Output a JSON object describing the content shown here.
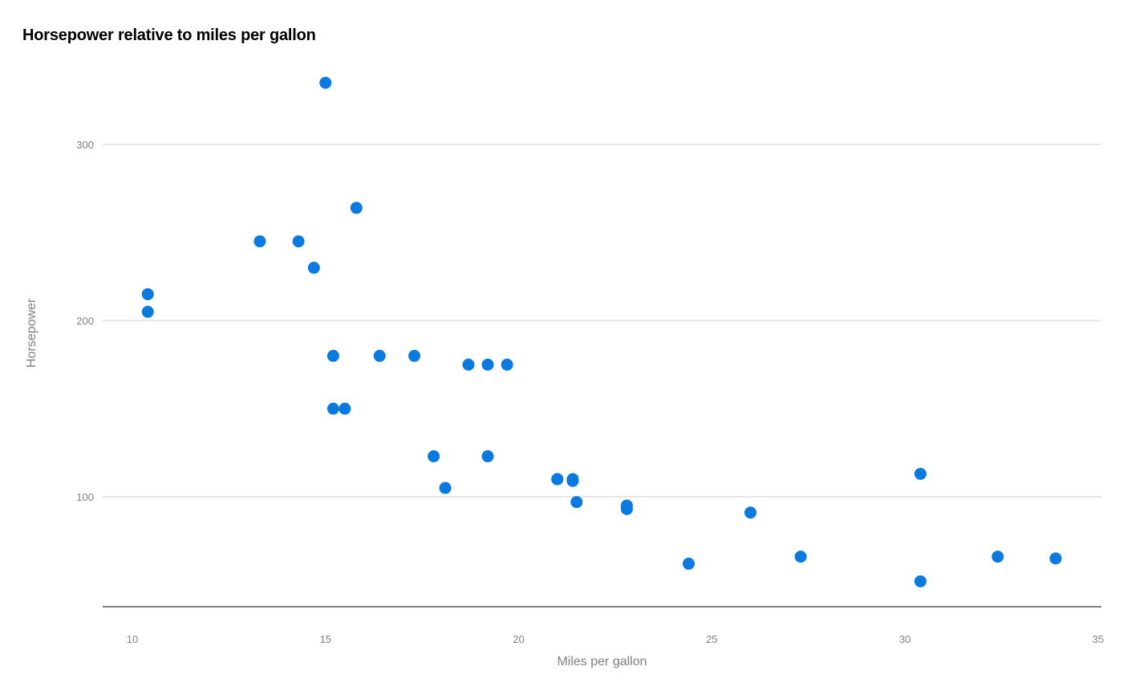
{
  "chart_data": {
    "type": "scatter",
    "title": "Horsepower relative to miles per gallon",
    "xlabel": "Miles per gallon",
    "ylabel": "Horsepower",
    "xlim": [
      10,
      35
    ],
    "ylim": [
      38,
      345
    ],
    "xticks": [
      "10",
      "15",
      "20",
      "25",
      "30",
      "35"
    ],
    "yticks": [
      "100",
      "200",
      "300"
    ],
    "grid": "horizontal",
    "point_color": "#0a7ae0",
    "points": [
      {
        "x": 21.0,
        "y": 110
      },
      {
        "x": 21.0,
        "y": 110
      },
      {
        "x": 22.8,
        "y": 93
      },
      {
        "x": 21.4,
        "y": 110
      },
      {
        "x": 18.7,
        "y": 175
      },
      {
        "x": 18.1,
        "y": 105
      },
      {
        "x": 14.3,
        "y": 245
      },
      {
        "x": 24.4,
        "y": 62
      },
      {
        "x": 22.8,
        "y": 95
      },
      {
        "x": 19.2,
        "y": 123
      },
      {
        "x": 17.8,
        "y": 123
      },
      {
        "x": 16.4,
        "y": 180
      },
      {
        "x": 17.3,
        "y": 180
      },
      {
        "x": 15.2,
        "y": 180
      },
      {
        "x": 10.4,
        "y": 205
      },
      {
        "x": 10.4,
        "y": 215
      },
      {
        "x": 14.7,
        "y": 230
      },
      {
        "x": 32.4,
        "y": 66
      },
      {
        "x": 30.4,
        "y": 52
      },
      {
        "x": 33.9,
        "y": 65
      },
      {
        "x": 21.5,
        "y": 97
      },
      {
        "x": 15.5,
        "y": 150
      },
      {
        "x": 15.2,
        "y": 150
      },
      {
        "x": 13.3,
        "y": 245
      },
      {
        "x": 19.2,
        "y": 175
      },
      {
        "x": 27.3,
        "y": 66
      },
      {
        "x": 26.0,
        "y": 91
      },
      {
        "x": 30.4,
        "y": 113
      },
      {
        "x": 15.8,
        "y": 264
      },
      {
        "x": 19.7,
        "y": 175
      },
      {
        "x": 15.0,
        "y": 335
      },
      {
        "x": 21.4,
        "y": 109
      }
    ]
  }
}
